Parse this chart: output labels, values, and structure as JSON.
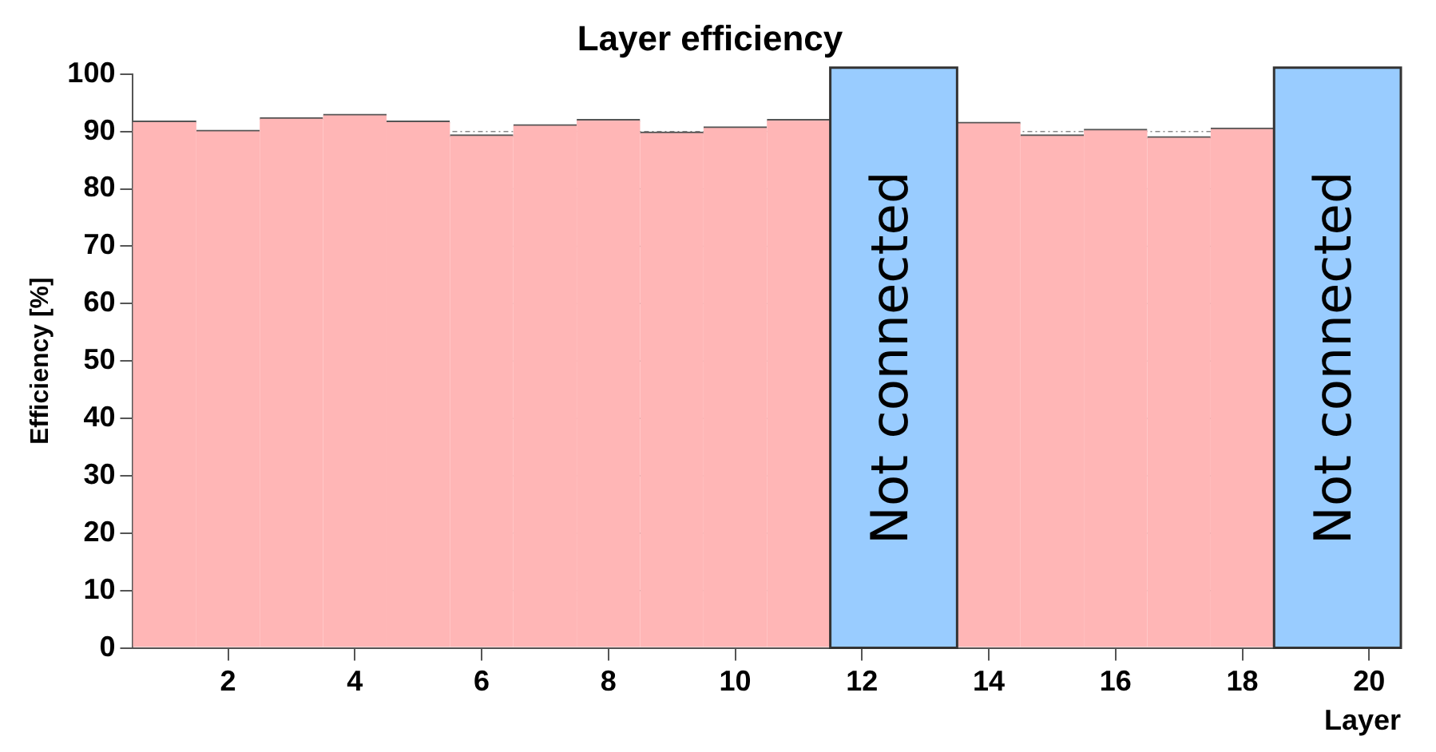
{
  "chart_data": {
    "type": "histogram",
    "title": "Layer efficiency",
    "xlabel": "Layer",
    "ylabel": "Efficiency [%]",
    "bins": [
      0.5,
      1.5,
      2.5,
      3.5,
      4.5,
      5.5,
      6.5,
      7.5,
      8.5,
      9.5,
      10.5,
      11.5,
      12.5,
      13.5,
      14.5,
      15.5,
      16.5,
      17.5,
      18.5,
      19.5,
      20.5
    ],
    "values": [
      91.8,
      90.2,
      92.4,
      93.0,
      91.8,
      89.4,
      91.2,
      92.1,
      89.9,
      90.8,
      92.1,
      null,
      null,
      91.6,
      89.4,
      90.4,
      89.1,
      90.6,
      null,
      null
    ],
    "color": "#ffb6b6",
    "xlim": [
      0.5,
      20.5
    ],
    "xticks": [
      2,
      4,
      6,
      8,
      10,
      12,
      14,
      16,
      18,
      20
    ],
    "ylim": [
      0,
      100
    ],
    "yticks": [
      0,
      10,
      20,
      30,
      40,
      50,
      60,
      70,
      80,
      90,
      100
    ],
    "grid": "y",
    "legend": false,
    "bands": [
      {
        "axis": "x",
        "from": 11.5,
        "to": 13.5,
        "label": "Not connected",
        "color": "#99ccff"
      },
      {
        "axis": "x",
        "from": 18.5,
        "to": 20.5,
        "label": "Not connected",
        "color": "#99ccff"
      }
    ]
  }
}
